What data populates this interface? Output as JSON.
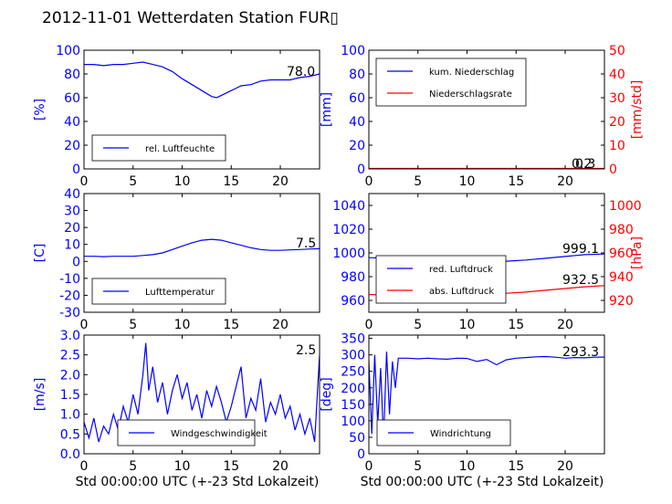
{
  "title": "2012-11-01 Wetterdaten Station FUR▯",
  "colors": {
    "left_axis": "#0000ff",
    "right_axis": "#ff0000",
    "line_blue": "#0000ff",
    "line_red": "#ff0000"
  },
  "chart_data": [
    {
      "type": "line",
      "panel": "humidity",
      "ylabel": "[%]",
      "xlim": [
        0,
        24
      ],
      "ylim": [
        0,
        100
      ],
      "xticks": [
        0,
        5,
        10,
        15,
        20
      ],
      "yticks": [
        0,
        20,
        40,
        60,
        80,
        100
      ],
      "annotation": "78.0",
      "legend_placement": "bottom-left",
      "series": [
        {
          "name": "rel. Luftfeuchte",
          "color": "blue",
          "x": [
            0,
            1,
            2,
            3,
            4,
            5,
            6,
            7,
            8,
            9,
            10,
            11,
            12,
            13,
            13.5,
            14,
            15,
            16,
            17,
            18,
            19,
            20,
            21,
            22,
            23,
            24
          ],
          "y": [
            88,
            88,
            87,
            88,
            88,
            89,
            90,
            88,
            86,
            82,
            76,
            71,
            66,
            61,
            60,
            62,
            66,
            70,
            71,
            74,
            75,
            75,
            75,
            77,
            78,
            80
          ]
        }
      ]
    },
    {
      "type": "line",
      "panel": "precipitation",
      "ylabel": "[mm]",
      "y2label": "[mm/std]",
      "xlim": [
        0,
        24
      ],
      "ylim": [
        0,
        100
      ],
      "y2lim": [
        0,
        50
      ],
      "xticks": [
        0,
        5,
        10,
        15,
        20
      ],
      "yticks": [
        0,
        20,
        40,
        60,
        80,
        100
      ],
      "y2ticks": [
        0,
        10,
        20,
        30,
        40,
        50
      ],
      "annotations": [
        "0.2",
        "0.3"
      ],
      "legend_placement": "top-left",
      "series": [
        {
          "name": "kum. Niederschlag",
          "color": "blue",
          "axis": "left",
          "x": [
            0,
            24
          ],
          "y": [
            0.3,
            0.3
          ]
        },
        {
          "name": "Niederschlagsrate",
          "color": "red",
          "axis": "right",
          "x": [
            0,
            24
          ],
          "y": [
            0.2,
            0.2
          ]
        }
      ]
    },
    {
      "type": "line",
      "panel": "temperature",
      "ylabel": "[C]",
      "xlim": [
        0,
        24
      ],
      "ylim": [
        -30,
        40
      ],
      "xticks": [
        0,
        5,
        10,
        15,
        20
      ],
      "yticks": [
        -30,
        -20,
        -10,
        0,
        10,
        20,
        30,
        40
      ],
      "annotation": "7.5",
      "legend_placement": "bottom-left",
      "series": [
        {
          "name": "Lufttemperatur",
          "color": "blue",
          "x": [
            0,
            1,
            2,
            3,
            4,
            5,
            6,
            7,
            8,
            9,
            10,
            11,
            12,
            13,
            14,
            15,
            16,
            17,
            18,
            19,
            20,
            21,
            22,
            23,
            24
          ],
          "y": [
            3,
            3,
            2.8,
            3,
            3,
            3,
            3.5,
            4,
            5,
            7,
            9,
            11,
            12.5,
            13,
            12.5,
            11,
            9.5,
            8,
            7,
            6.5,
            6.5,
            6.8,
            7,
            7.3,
            7.5
          ]
        }
      ]
    },
    {
      "type": "line",
      "panel": "pressure",
      "y2label": "[hPa]",
      "xlim": [
        0,
        24
      ],
      "ylim": [
        950,
        1050
      ],
      "y2lim": [
        910,
        1010
      ],
      "xticks": [
        0,
        5,
        10,
        15,
        20
      ],
      "yticks": [
        960,
        980,
        1000,
        1020,
        1040
      ],
      "y2ticks": [
        920,
        940,
        960,
        980,
        1000
      ],
      "annotations": [
        "999.1",
        "932.5"
      ],
      "legend_placement": "center-left",
      "series": [
        {
          "name": "red. Luftdruck",
          "color": "blue",
          "axis": "left",
          "x": [
            0,
            2,
            4,
            6,
            8,
            10,
            12,
            14,
            16,
            18,
            20,
            22,
            24
          ],
          "y": [
            996,
            995.5,
            995,
            994.5,
            994,
            993.5,
            993,
            993,
            994,
            995.5,
            997,
            998.5,
            999.1
          ]
        },
        {
          "name": "abs. Luftdruck",
          "color": "red",
          "axis": "right",
          "x": [
            0,
            2,
            4,
            6,
            8,
            10,
            12,
            14,
            16,
            18,
            20,
            22,
            24
          ],
          "y": [
            925,
            924.5,
            924,
            924,
            924,
            924.5,
            925,
            926,
            927,
            928.5,
            930,
            931.5,
            932.5
          ]
        }
      ]
    },
    {
      "type": "line",
      "panel": "wind_speed",
      "ylabel": "[m/s]",
      "xlabel": "Std 00:00:00 UTC (+-23 Std Lokalzeit)",
      "xlim": [
        0,
        24
      ],
      "ylim": [
        0,
        3
      ],
      "xticks": [
        0,
        5,
        10,
        15,
        20
      ],
      "yticks": [
        0.0,
        0.5,
        1.0,
        1.5,
        2.0,
        2.5,
        3.0
      ],
      "annotation": "2.5",
      "legend_placement": "bottom-center",
      "series": [
        {
          "name": "Windgeschwindigkeit",
          "color": "blue",
          "x": [
            0,
            0.5,
            1,
            1.5,
            2,
            2.5,
            3,
            3.5,
            4,
            4.5,
            5,
            5.5,
            6,
            6.3,
            6.6,
            7,
            7.5,
            8,
            8.5,
            9,
            9.5,
            10,
            10.5,
            11,
            11.5,
            12,
            12.5,
            13,
            13.5,
            14,
            14.5,
            15,
            15.5,
            16,
            16.5,
            17,
            17.5,
            18,
            18.5,
            19,
            19.5,
            20,
            20.5,
            21,
            21.5,
            22,
            22.5,
            23,
            23.5,
            24
          ],
          "y": [
            0.8,
            0.4,
            0.9,
            0.3,
            0.7,
            0.5,
            1.0,
            0.6,
            1.2,
            0.8,
            1.5,
            1.0,
            2.0,
            2.8,
            1.6,
            2.2,
            1.3,
            1.8,
            1.0,
            1.6,
            2.0,
            1.4,
            1.8,
            1.1,
            1.5,
            0.9,
            1.6,
            1.2,
            1.7,
            1.3,
            0.8,
            1.2,
            1.7,
            2.2,
            0.9,
            1.4,
            1.1,
            1.9,
            0.8,
            1.3,
            1.0,
            1.5,
            0.9,
            1.2,
            0.6,
            1.0,
            0.5,
            0.9,
            0.3,
            2.5
          ]
        }
      ]
    },
    {
      "type": "line",
      "panel": "wind_direction",
      "ylabel": "[deg]",
      "xlabel": "Std 00:00:00 UTC (+-23 Std Lokalzeit)",
      "xlim": [
        0,
        24
      ],
      "ylim": [
        0,
        360
      ],
      "xticks": [
        0,
        5,
        10,
        15,
        20
      ],
      "yticks": [
        0,
        50,
        100,
        150,
        200,
        250,
        300,
        350
      ],
      "annotation": "293.3",
      "legend_placement": "bottom-left",
      "series": [
        {
          "name": "Windrichtung",
          "color": "blue",
          "x": [
            0,
            0.3,
            0.6,
            0.9,
            1.2,
            1.5,
            1.8,
            2.1,
            2.4,
            2.7,
            3,
            4,
            5,
            6,
            7,
            8,
            9,
            10,
            11,
            12,
            13,
            14,
            15,
            16,
            17,
            18,
            19,
            20,
            21,
            22,
            23,
            24
          ],
          "y": [
            280,
            60,
            300,
            90,
            260,
            40,
            310,
            120,
            280,
            200,
            290,
            290,
            288,
            290,
            288,
            287,
            290,
            289,
            280,
            286,
            270,
            285,
            290,
            292,
            294,
            295,
            293,
            290,
            292,
            291,
            293,
            293.3
          ]
        }
      ]
    }
  ]
}
